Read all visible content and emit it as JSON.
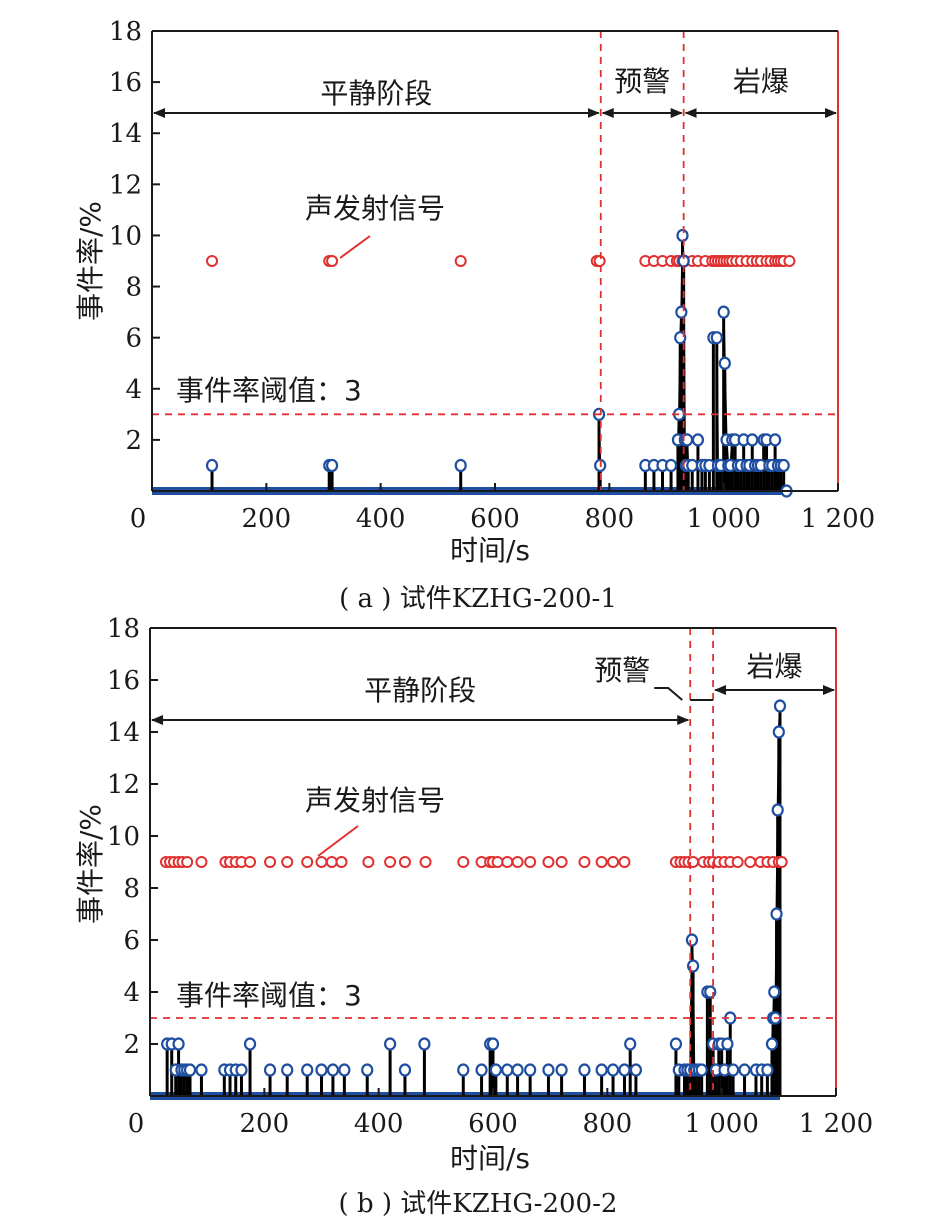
{
  "chart_data": [
    {
      "type": "scatter",
      "caption": "( a ) 试件KZHG-200-1",
      "xlabel": "时间/s",
      "ylabel": "事件率/%",
      "xlim": [
        0,
        1200
      ],
      "ylim": [
        0,
        18
      ],
      "x_ticks": [
        "0",
        "200",
        "400",
        "600",
        "800",
        "1 000",
        "1 200"
      ],
      "y_ticks": [
        "2",
        "4",
        "6",
        "8",
        "10",
        "12",
        "14",
        "16",
        "18"
      ],
      "threshold": {
        "value": 3,
        "label": "事件率阈值：3"
      },
      "stage_lines": [
        785,
        930
      ],
      "end_line": 1200,
      "stages": [
        {
          "label": "平静阶段",
          "from": 0,
          "to": 785
        },
        {
          "label": "预警",
          "from": 785,
          "to": 930
        },
        {
          "label": "岩爆",
          "from": 930,
          "to": 1200
        }
      ],
      "signal_label": "声发射信号",
      "signal_y": 9,
      "signal_x": [
        105,
        310,
        315,
        540,
        778,
        783,
        863,
        878,
        893,
        908,
        918,
        922,
        928,
        932,
        945,
        955,
        968,
        980,
        985,
        990,
        995,
        1000,
        1005,
        1010,
        1015,
        1022,
        1030,
        1040,
        1050,
        1058,
        1065,
        1075,
        1082,
        1090,
        1095,
        1100,
        1105,
        1115
      ],
      "series": [
        {
          "x": [
            105,
            310,
            315,
            540,
            782,
            784,
            863,
            878,
            893,
            908,
            920,
            922,
            924,
            926,
            928,
            930,
            932,
            934,
            936,
            938,
            945,
            955,
            962,
            968,
            975,
            982,
            988,
            990,
            995,
            1000,
            1002,
            1005,
            1008,
            1012,
            1015,
            1020,
            1025,
            1030,
            1035,
            1040,
            1045,
            1050,
            1055,
            1060,
            1065,
            1070,
            1075,
            1080,
            1085,
            1090,
            1095,
            1100,
            1105,
            1110
          ],
          "y": [
            1,
            1,
            1,
            1,
            3,
            1,
            1,
            1,
            1,
            1,
            2,
            3,
            6,
            7,
            10,
            9,
            2,
            1,
            2,
            1,
            1,
            2,
            1,
            1,
            1,
            6,
            6,
            1,
            1,
            7,
            5,
            2,
            1,
            1,
            2,
            2,
            1,
            1,
            2,
            1,
            1,
            2,
            1,
            1,
            1,
            2,
            2,
            1,
            1,
            2,
            1,
            1,
            1,
            0
          ]
        }
      ]
    },
    {
      "type": "scatter",
      "caption": "( b ) 试件KZHG-200-2",
      "xlabel": "时间/s",
      "ylabel": "事件率/%",
      "xlim": [
        0,
        1200
      ],
      "ylim": [
        0,
        18
      ],
      "x_ticks": [
        "0",
        "200",
        "400",
        "600",
        "800",
        "1 000",
        "1 200"
      ],
      "y_ticks": [
        "2",
        "4",
        "6",
        "8",
        "10",
        "12",
        "14",
        "16",
        "18"
      ],
      "threshold": {
        "value": 3,
        "label": "事件率阈值：3"
      },
      "stage_lines": [
        945,
        985
      ],
      "end_line": 1200,
      "stages": [
        {
          "label": "平静阶段",
          "from": 0,
          "to": 945
        },
        {
          "label": "预警",
          "from": 945,
          "to": 985
        },
        {
          "label": "岩爆",
          "from": 985,
          "to": 1200
        }
      ],
      "signal_label": "声发射信号",
      "signal_y": 9,
      "signal_x": [
        28,
        35,
        42,
        50,
        57,
        65,
        90,
        132,
        140,
        150,
        160,
        175,
        210,
        240,
        275,
        300,
        318,
        335,
        382,
        420,
        446,
        482,
        548,
        580,
        595,
        600,
        608,
        625,
        643,
        665,
        697,
        720,
        760,
        790,
        810,
        830,
        920,
        928,
        935,
        942,
        950,
        968,
        978,
        985,
        995,
        1005,
        1015,
        1028,
        1050,
        1068,
        1080,
        1090,
        1100,
        1105
      ],
      "series": [
        {
          "x": [
            30,
            38,
            45,
            50,
            55,
            60,
            65,
            70,
            90,
            130,
            140,
            150,
            160,
            175,
            210,
            240,
            275,
            300,
            320,
            340,
            380,
            420,
            446,
            480,
            548,
            580,
            595,
            600,
            605,
            625,
            643,
            665,
            697,
            720,
            760,
            790,
            810,
            830,
            840,
            850,
            920,
            925,
            935,
            940,
            945,
            948,
            950,
            952,
            955,
            960,
            965,
            975,
            980,
            985,
            990,
            995,
            1000,
            1005,
            1010,
            1015,
            1020,
            1040,
            1060,
            1070,
            1080,
            1088,
            1090,
            1092,
            1094,
            1096,
            1098,
            1100,
            1102
          ],
          "y": [
            2,
            2,
            1,
            2,
            1,
            1,
            1,
            1,
            1,
            1,
            1,
            1,
            1,
            2,
            1,
            1,
            1,
            1,
            1,
            1,
            1,
            2,
            1,
            2,
            1,
            1,
            2,
            2,
            1,
            1,
            1,
            1,
            1,
            1,
            1,
            1,
            1,
            1,
            2,
            1,
            2,
            1,
            1,
            1,
            1,
            6,
            5,
            1,
            1,
            1,
            1,
            4,
            4,
            2,
            1,
            2,
            2,
            1,
            2,
            3,
            1,
            1,
            1,
            1,
            1,
            2,
            3,
            4,
            3,
            7,
            11,
            14,
            15
          ]
        }
      ]
    }
  ]
}
